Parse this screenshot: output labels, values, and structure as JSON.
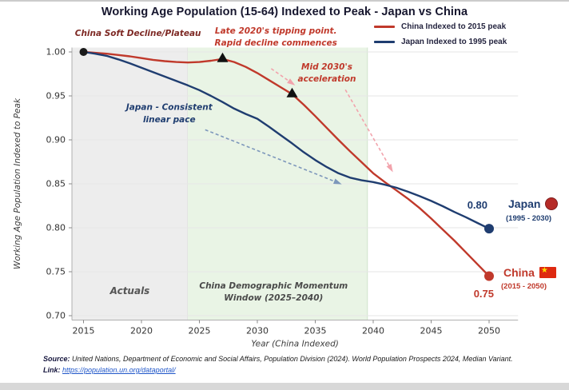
{
  "title": "Working Age Population (15-64) Indexed to Peak - Japan vs China",
  "colors": {
    "china-red": "#c0392b",
    "japan-navy": "#1f3d70",
    "link-blue": "#1f56c9",
    "flag-red": "#de2910",
    "flag-yellow": "#ffde00",
    "japan-flag": "#b52b27"
  },
  "icons": {
    "china_flag_star": "★"
  },
  "side_labels": {
    "japan_value": "0.80",
    "japan_name": "Japan",
    "japan_range": "(1995 - 2030)",
    "china_name": "China",
    "china_range": "(2015 - 2050)",
    "china_value": "0.75"
  },
  "footer": {
    "source_label": "Source:",
    "source_text": " United Nations, Department of Economic and Social Affairs, Population Division (2024). World Population Prospects 2024, Median Variant.",
    "link_label": "Link:",
    "link_url": "https://population.un.org/dataportal/"
  },
  "chart_data": {
    "type": "line",
    "title": "Working Age Population (15-64) Indexed to Peak - Japan vs China",
    "xlabel": "Year (China Indexed)",
    "ylabel": "Working Age Population Indexed to Peak",
    "xlim": [
      2014,
      2052.5
    ],
    "ylim": [
      0.695,
      1.005
    ],
    "xticks": [
      2015,
      2020,
      2025,
      2030,
      2035,
      2040,
      2045,
      2050
    ],
    "yticks": [
      0.7,
      0.75,
      0.8,
      0.85,
      0.9,
      0.95,
      1.0
    ],
    "grid": true,
    "legend_position": "top-right",
    "bands": [
      {
        "name": "actuals",
        "from": 2014,
        "to": 2024,
        "color": "#ededed",
        "edge": "#dadada"
      },
      {
        "name": "momentum",
        "from": 2024,
        "to": 2039.5,
        "color": "#e9f4e5",
        "edge": "#cfe3cb"
      }
    ],
    "series": [
      {
        "slug": "china",
        "name": "China Indexed to 2015 peak",
        "color": "#c0392b",
        "points": [
          [
            2015,
            1.0
          ],
          [
            2016,
            0.999
          ],
          [
            2017,
            0.998
          ],
          [
            2018,
            0.9965
          ],
          [
            2019,
            0.995
          ],
          [
            2020,
            0.993
          ],
          [
            2021,
            0.991
          ],
          [
            2022,
            0.9895
          ],
          [
            2023,
            0.9885
          ],
          [
            2024,
            0.988
          ],
          [
            2025,
            0.9885
          ],
          [
            2026,
            0.99
          ],
          [
            2027,
            0.992
          ],
          [
            2028,
            0.9885
          ],
          [
            2029,
            0.983
          ],
          [
            2030,
            0.976
          ],
          [
            2031,
            0.968
          ],
          [
            2032,
            0.96
          ],
          [
            2033,
            0.952
          ],
          [
            2034,
            0.94
          ],
          [
            2035,
            0.927
          ],
          [
            2036,
            0.9135
          ],
          [
            2037,
            0.9
          ],
          [
            2038,
            0.887
          ],
          [
            2039,
            0.8745
          ],
          [
            2040,
            0.862
          ],
          [
            2041,
            0.852
          ],
          [
            2042,
            0.8425
          ],
          [
            2043,
            0.833
          ],
          [
            2044,
            0.8225
          ],
          [
            2045,
            0.8105
          ],
          [
            2046,
            0.798
          ],
          [
            2047,
            0.7855
          ],
          [
            2048,
            0.772
          ],
          [
            2049,
            0.7585
          ],
          [
            2050,
            0.745
          ]
        ]
      },
      {
        "slug": "japan",
        "name": "Japan Indexed to 1995 peak",
        "color": "#1f3d70",
        "points": [
          [
            2015,
            1.0
          ],
          [
            2016,
            0.998
          ],
          [
            2017,
            0.9955
          ],
          [
            2018,
            0.9915
          ],
          [
            2019,
            0.987
          ],
          [
            2020,
            0.982
          ],
          [
            2021,
            0.977
          ],
          [
            2022,
            0.972
          ],
          [
            2023,
            0.967
          ],
          [
            2024,
            0.962
          ],
          [
            2025,
            0.9565
          ],
          [
            2026,
            0.95
          ],
          [
            2027,
            0.943
          ],
          [
            2028,
            0.9355
          ],
          [
            2029,
            0.9295
          ],
          [
            2030,
            0.924
          ],
          [
            2031,
            0.915
          ],
          [
            2032,
            0.9055
          ],
          [
            2033,
            0.896
          ],
          [
            2034,
            0.886
          ],
          [
            2035,
            0.877
          ],
          [
            2036,
            0.869
          ],
          [
            2037,
            0.862
          ],
          [
            2038,
            0.857
          ],
          [
            2039,
            0.854
          ],
          [
            2040,
            0.852
          ],
          [
            2041,
            0.849
          ],
          [
            2042,
            0.8455
          ],
          [
            2043,
            0.841
          ],
          [
            2044,
            0.836
          ],
          [
            2045,
            0.8305
          ],
          [
            2046,
            0.8245
          ],
          [
            2047,
            0.818
          ],
          [
            2048,
            0.812
          ],
          [
            2049,
            0.8055
          ],
          [
            2050,
            0.799
          ]
        ]
      }
    ],
    "markers": {
      "start": {
        "x": 2015,
        "y": 1.0,
        "color": "#1a1a1a"
      },
      "triangles": [
        {
          "x": 2027,
          "y": 0.992
        },
        {
          "x": 2033,
          "y": 0.952
        }
      ],
      "ends": [
        {
          "slug": "japan",
          "x": 2050,
          "y": 0.799,
          "color": "#1f3d70"
        },
        {
          "slug": "china",
          "x": 2050,
          "y": 0.745,
          "color": "#c0392b"
        }
      ]
    },
    "arrows": [
      {
        "name": "tipping-point-arrow",
        "color": "#f2a3ac",
        "from": [
          2031.2,
          0.981
        ],
        "to": [
          2033.1,
          0.9635
        ]
      },
      {
        "name": "acceleration-arrow",
        "color": "#f2a3ac",
        "from": [
          2037.6,
          0.957
        ],
        "to": [
          2041.6,
          0.8655
        ]
      },
      {
        "name": "japan-pace-arrow",
        "color": "#7d97bb",
        "from": [
          2025.5,
          0.9115
        ],
        "to": [
          2037.1,
          0.8505
        ]
      }
    ],
    "annotations": [
      {
        "name": "annotation-china-soft-decline",
        "lines": [
          "China Soft Decline/Plateau"
        ],
        "x": 2019.7,
        "v": 1.018,
        "color": "#7e2a25",
        "size": 10.5,
        "weight": 700
      },
      {
        "name": "annotation-tipping-point",
        "lines": [
          "Late 2020's tipping point.",
          "Rapid decline commences"
        ],
        "x": 2031.6,
        "v": 1.021,
        "color": "#c0392b",
        "size": 10.5,
        "weight": 700
      },
      {
        "name": "annotation-mid-2030s",
        "lines": [
          "Mid 2030's",
          "acceleration"
        ],
        "x": 2036.0,
        "v": 0.98,
        "color": "#c0392b",
        "size": 10.5,
        "weight": 700
      },
      {
        "name": "annotation-japan-pace",
        "lines": [
          "Japan - Consistent",
          "linear pace"
        ],
        "x": 2022.4,
        "v": 0.934,
        "color": "#1f3d70",
        "size": 10.5,
        "weight": 700
      },
      {
        "name": "annotation-actuals",
        "lines": [
          "Actuals"
        ],
        "x": 2019.0,
        "v": 0.7245,
        "color": "#555555",
        "size": 12,
        "weight": 700
      },
      {
        "name": "annotation-momentum-window",
        "lines": [
          "China Demographic Momentum",
          "Window (2025–2040)"
        ],
        "x": 2031.4,
        "v": 0.731,
        "color": "#4a4a4a",
        "size": 10.5,
        "weight": 600
      }
    ]
  }
}
